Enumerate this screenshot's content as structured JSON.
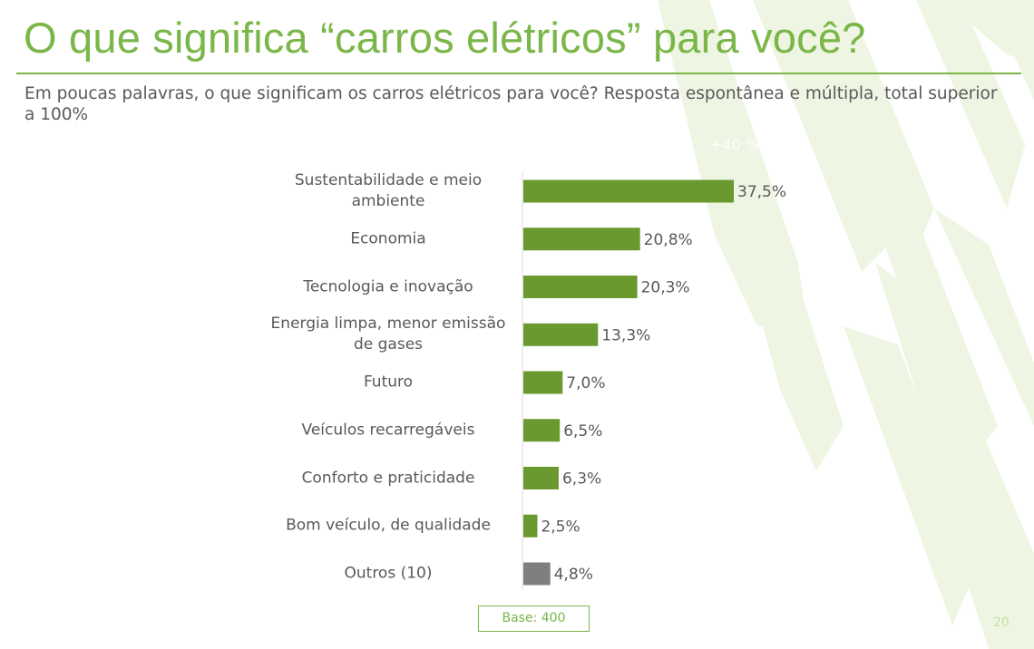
{
  "title": "O que significa “carros elétricos” para você?",
  "subtitle": "Em poucas palavras, o que significam os carros elétricos para você? Resposta espontânea e múltipla, total superior a 100%",
  "ghost_text": "+40 %",
  "base_label": "Base: 400",
  "page_number": "20",
  "colors": {
    "accent": "#7ab648",
    "bar": "#6a992f",
    "bar_other": "#7f7f7f",
    "text": "#595959",
    "bg_stripes": "#eef6e3"
  },
  "chart_data": {
    "type": "bar",
    "orientation": "horizontal",
    "categories": [
      "Sustentabilidade e meio ambiente",
      "Economia",
      "Tecnologia e inovação",
      "Energia limpa, menor emissão de gases",
      "Futuro",
      "Veículos recarregáveis",
      "Conforto e praticidade",
      "Bom veículo, de qualidade",
      "Outros (10)"
    ],
    "values": [
      37.5,
      20.8,
      20.3,
      13.3,
      7.0,
      6.5,
      6.3,
      2.5,
      4.8
    ],
    "data_labels": [
      "37,5%",
      "20,8%",
      "20,3%",
      "13,3%",
      "7,0%",
      "6,5%",
      "6,3%",
      "2,5%",
      "4,8%"
    ],
    "highlight_last": true,
    "xlim": [
      0,
      37.5
    ],
    "grid": false,
    "legend": "none"
  }
}
